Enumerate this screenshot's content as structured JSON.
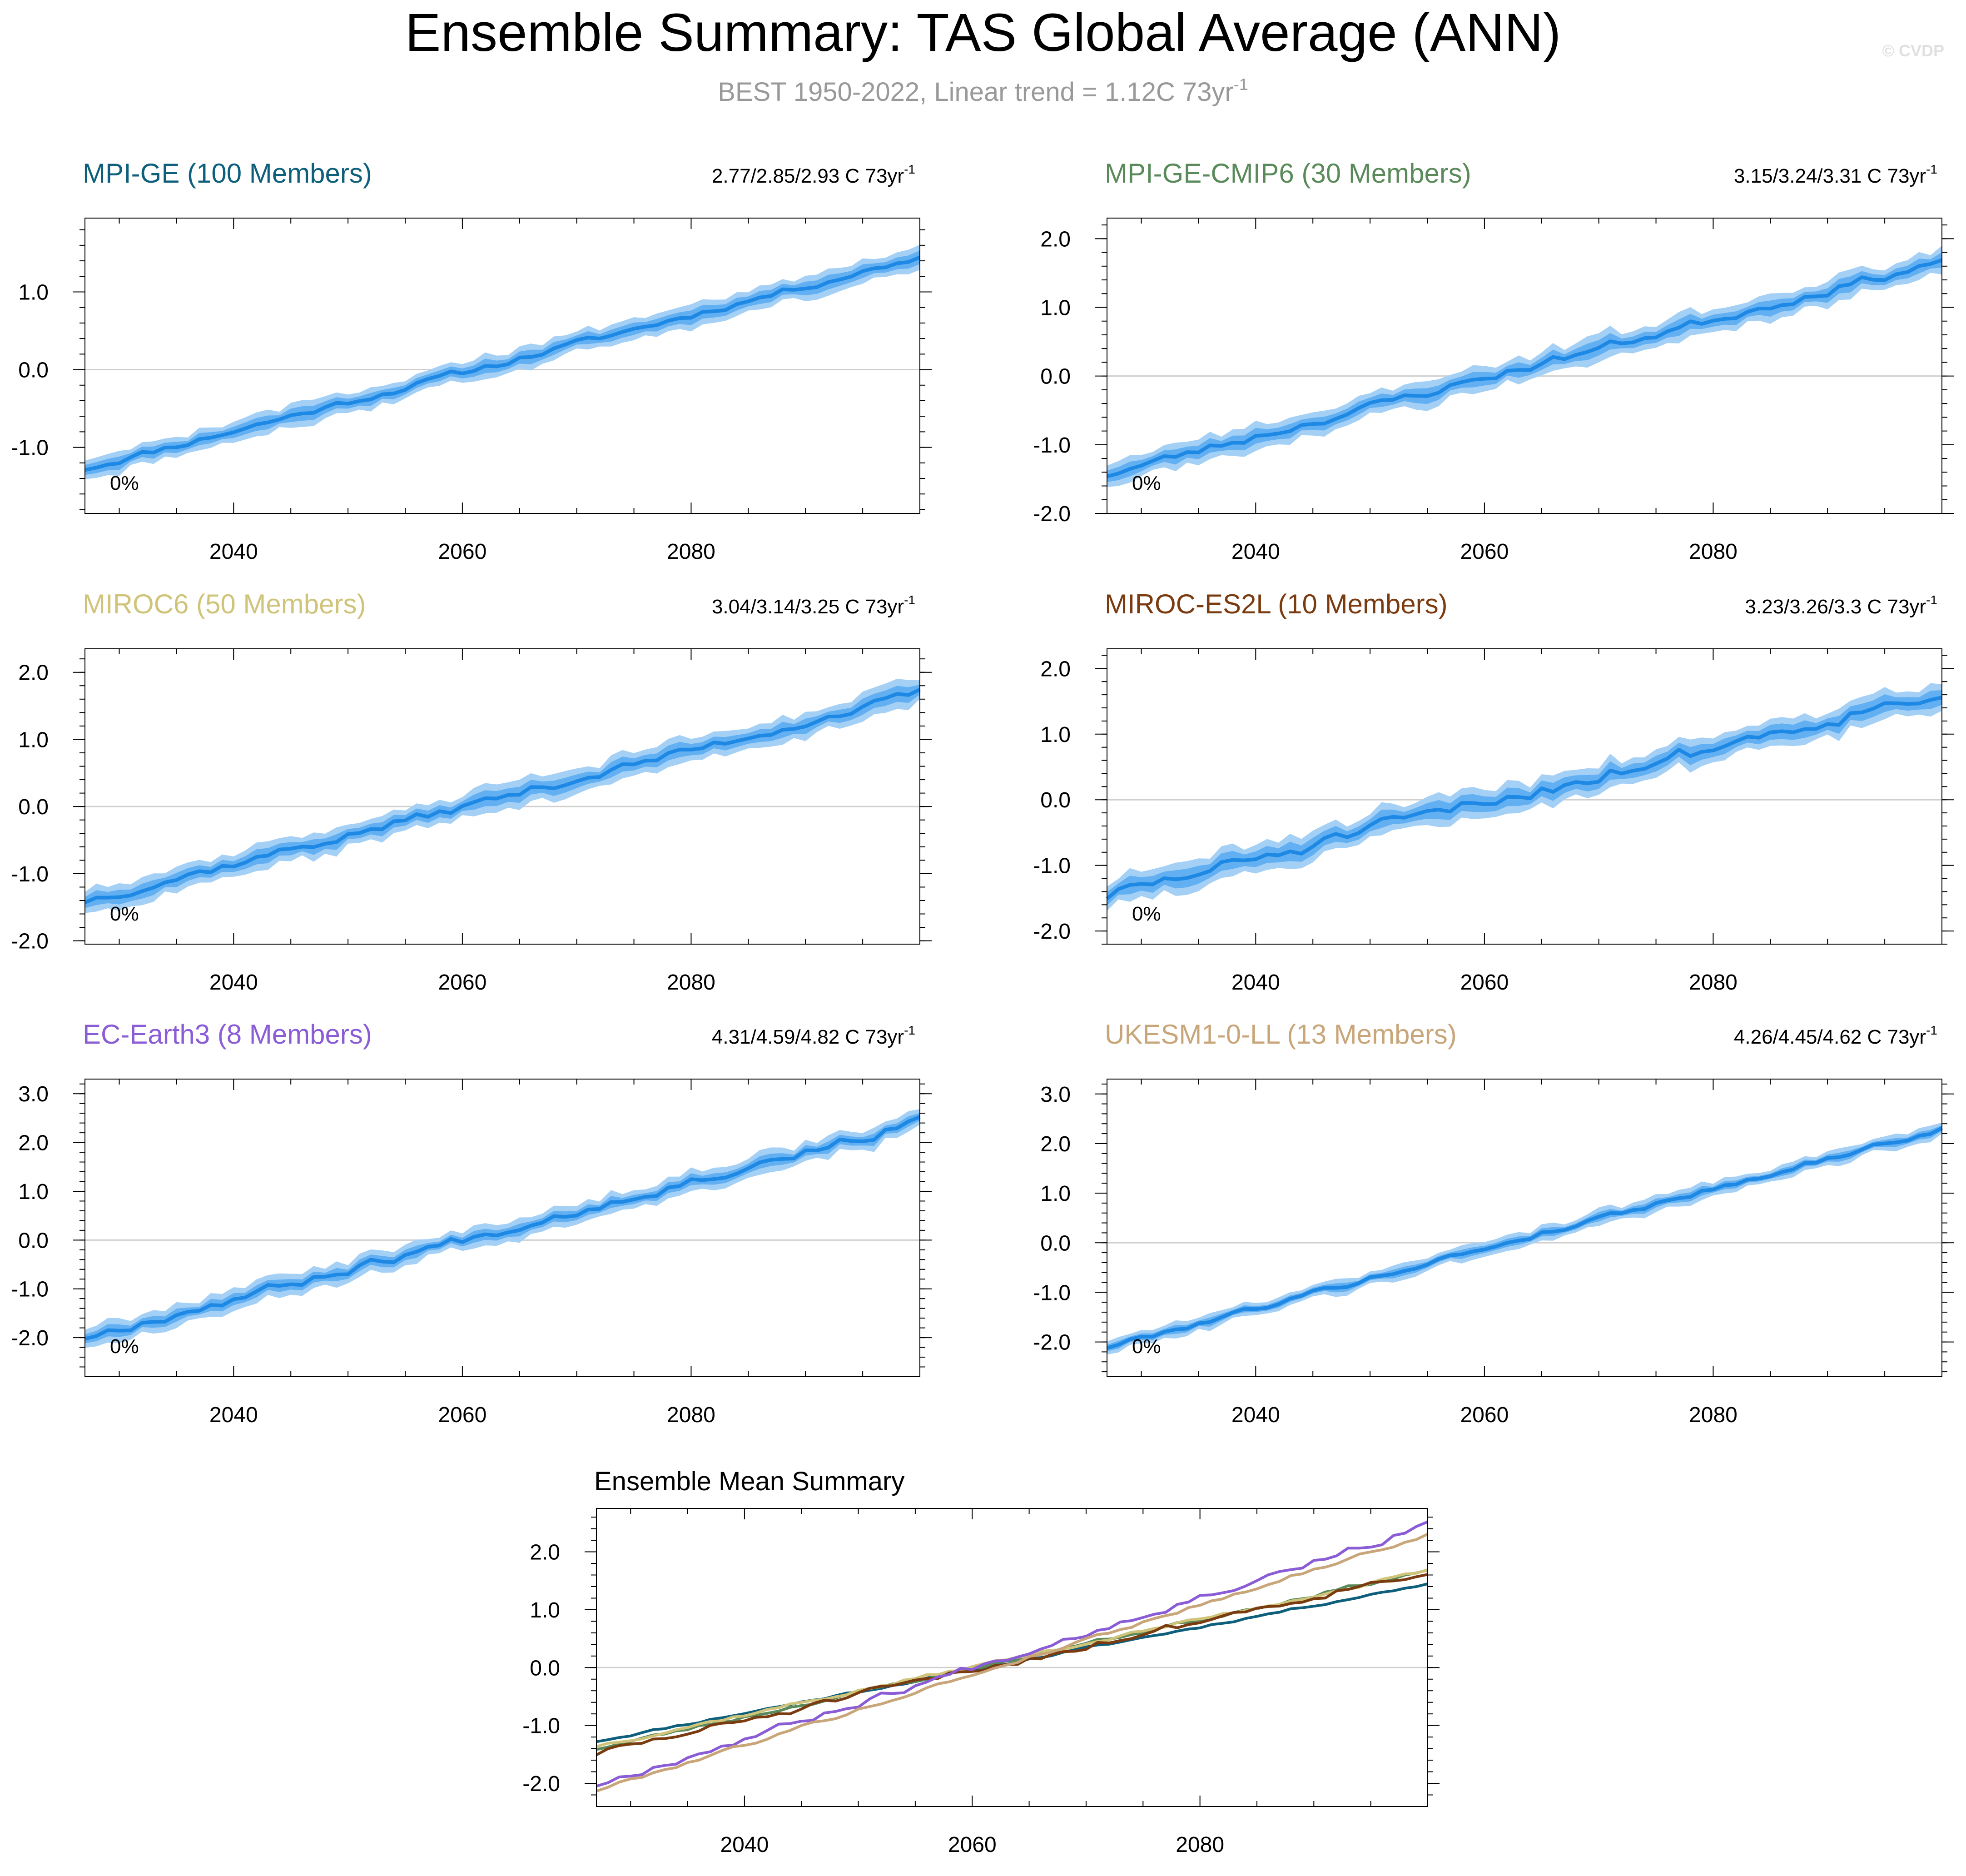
{
  "title": "Ensemble Summary: TAS Global Average (ANN)",
  "subtitle": "BEST 1950-2022, Linear trend = 1.12C 73yr",
  "subtitle_sup": "-1",
  "watermark": "© CVDP",
  "colors": {
    "band_light": "#a5d0f6",
    "band_mid": "#62b0f2",
    "mean_line": "#1e88e5",
    "zero_line": "#cfcfcf",
    "axis": "#000000",
    "subtitle": "#999999"
  },
  "chart_data": [
    {
      "type": "line",
      "title": "MPI-GE (100 Members)",
      "title_color": "#0e5f7b",
      "trend_label": "2.77/2.85/2.93 C 73yr",
      "trend_sup": "-1",
      "percent_label": "0%",
      "x_range": [
        2027,
        2100
      ],
      "ylim": [
        -1.85,
        1.95
      ],
      "yticks": [
        "1.0",
        "0.0",
        "-1.0"
      ],
      "ytick_values": [
        1.0,
        0.0,
        -1.0
      ],
      "xticks": [
        "2040",
        "2060",
        "2080"
      ],
      "xtick_values": [
        2040,
        2060,
        2080
      ],
      "start": -1.27,
      "end": 1.45,
      "noise": 0.04,
      "spread": 0.07,
      "outer": 0.13,
      "seed": 11
    },
    {
      "type": "line",
      "title": "MPI-GE-CMIP6 (30 Members)",
      "title_color": "#5a8a5a",
      "trend_label": "3.15/3.24/3.31 C 73yr",
      "trend_sup": "-1",
      "percent_label": "0%",
      "x_range": [
        2027,
        2100
      ],
      "ylim": [
        -2.0,
        2.3
      ],
      "yticks": [
        "2.0",
        "1.0",
        "0.0",
        "-1.0",
        "-2.0"
      ],
      "ytick_values": [
        2.0,
        1.0,
        0.0,
        -1.0,
        -2.0
      ],
      "xticks": [
        "2040",
        "2060",
        "2080"
      ],
      "xtick_values": [
        2040,
        2060,
        2080
      ],
      "start": -1.43,
      "end": 1.68,
      "noise": 0.06,
      "spread": 0.09,
      "outer": 0.17,
      "seed": 23
    },
    {
      "type": "line",
      "title": "MIROC6 (50 Members)",
      "title_color": "#cfc47a",
      "trend_label": "3.04/3.14/3.25 C 73yr",
      "trend_sup": "-1",
      "percent_label": "0%",
      "x_range": [
        2027,
        2100
      ],
      "ylim": [
        -2.05,
        2.35
      ],
      "yticks": [
        "2.0",
        "1.0",
        "0.0",
        "-1.0",
        "-2.0"
      ],
      "ytick_values": [
        2.0,
        1.0,
        0.0,
        -1.0,
        -2.0
      ],
      "xticks": [
        "2040",
        "2060",
        "2080"
      ],
      "xtick_values": [
        2040,
        2060,
        2080
      ],
      "start": -1.4,
      "end": 1.68,
      "noise": 0.06,
      "spread": 0.09,
      "outer": 0.17,
      "seed": 37
    },
    {
      "type": "line",
      "title": "MIROC-ES2L (10 Members)",
      "title_color": "#7b3b10",
      "trend_label": "3.23/3.26/3.3 C 73yr",
      "trend_sup": "-1",
      "percent_label": "0%",
      "x_range": [
        2027,
        2100
      ],
      "ylim": [
        -2.2,
        2.3
      ],
      "yticks": [
        "2.0",
        "1.0",
        "0.0",
        "-1.0",
        "-2.0"
      ],
      "ytick_values": [
        2.0,
        1.0,
        0.0,
        -1.0,
        -2.0
      ],
      "xticks": [
        "2040",
        "2060",
        "2080"
      ],
      "xtick_values": [
        2040,
        2060,
        2080
      ],
      "start": -1.46,
      "end": 1.66,
      "noise": 0.1,
      "spread": 0.11,
      "outer": 0.2,
      "seed": 51
    },
    {
      "type": "line",
      "title": "EC-Earth3 (8 Members)",
      "title_color": "#8a5cd6",
      "trend_label": "4.31/4.59/4.82 C 73yr",
      "trend_sup": "-1",
      "percent_label": "0%",
      "x_range": [
        2027,
        2100
      ],
      "ylim": [
        -2.8,
        3.3
      ],
      "yticks": [
        "3.0",
        "2.0",
        "1.0",
        "0.0",
        "-1.0",
        "-2.0"
      ],
      "ytick_values": [
        3.0,
        2.0,
        1.0,
        0.0,
        -1.0,
        -2.0
      ],
      "xticks": [
        "2040",
        "2060",
        "2080"
      ],
      "xtick_values": [
        2040,
        2060,
        2080
      ],
      "start": -1.98,
      "end": 2.42,
      "noise": 0.09,
      "spread": 0.1,
      "outer": 0.2,
      "seed": 67
    },
    {
      "type": "line",
      "title": "UKESM1-0-LL (13 Members)",
      "title_color": "#c8a67a",
      "trend_label": "4.26/4.45/4.62 C 73yr",
      "trend_sup": "-1",
      "percent_label": "0%",
      "x_range": [
        2027,
        2100
      ],
      "ylim": [
        -2.7,
        3.3
      ],
      "yticks": [
        "3.0",
        "2.0",
        "1.0",
        "0.0",
        "-1.0",
        "-2.0"
      ],
      "ytick_values": [
        3.0,
        2.0,
        1.0,
        0.0,
        -1.0,
        -2.0
      ],
      "xticks": [
        "2040",
        "2060",
        "2080"
      ],
      "xtick_values": [
        2040,
        2060,
        2080
      ],
      "start": -2.1,
      "end": 2.3,
      "noise": 0.05,
      "spread": 0.07,
      "outer": 0.14,
      "seed": 79
    },
    {
      "type": "line",
      "title": "Ensemble Mean Summary",
      "title_color": "#000000",
      "x_range": [
        2027,
        2100
      ],
      "ylim": [
        -2.4,
        2.75
      ],
      "yticks": [
        "2.0",
        "1.0",
        "0.0",
        "-1.0",
        "-2.0"
      ],
      "ytick_values": [
        2.0,
        1.0,
        0.0,
        -1.0,
        -2.0
      ],
      "xticks": [
        "2040",
        "2060",
        "2080"
      ],
      "xtick_values": [
        2040,
        2060,
        2080
      ],
      "series": [
        {
          "name": "MPI-GE",
          "color": "#0e5f7b",
          "start": -1.27,
          "end": 1.45,
          "noise": 0.02,
          "seed": 11
        },
        {
          "name": "MPI-GE-CMIP6",
          "color": "#5a8a5a",
          "start": -1.4,
          "end": 1.68,
          "noise": 0.03,
          "seed": 23
        },
        {
          "name": "MIROC6",
          "color": "#cfc47a",
          "start": -1.35,
          "end": 1.66,
          "noise": 0.03,
          "seed": 37
        },
        {
          "name": "MIROC-ES2L",
          "color": "#7b3b10",
          "start": -1.48,
          "end": 1.67,
          "noise": 0.06,
          "seed": 51
        },
        {
          "name": "EC-Earth3",
          "color": "#8a5cd6",
          "start": -2.02,
          "end": 2.45,
          "noise": 0.06,
          "seed": 67
        },
        {
          "name": "UKESM1-0-LL",
          "color": "#c8a67a",
          "start": -2.12,
          "end": 2.3,
          "noise": 0.03,
          "seed": 79
        }
      ]
    }
  ]
}
